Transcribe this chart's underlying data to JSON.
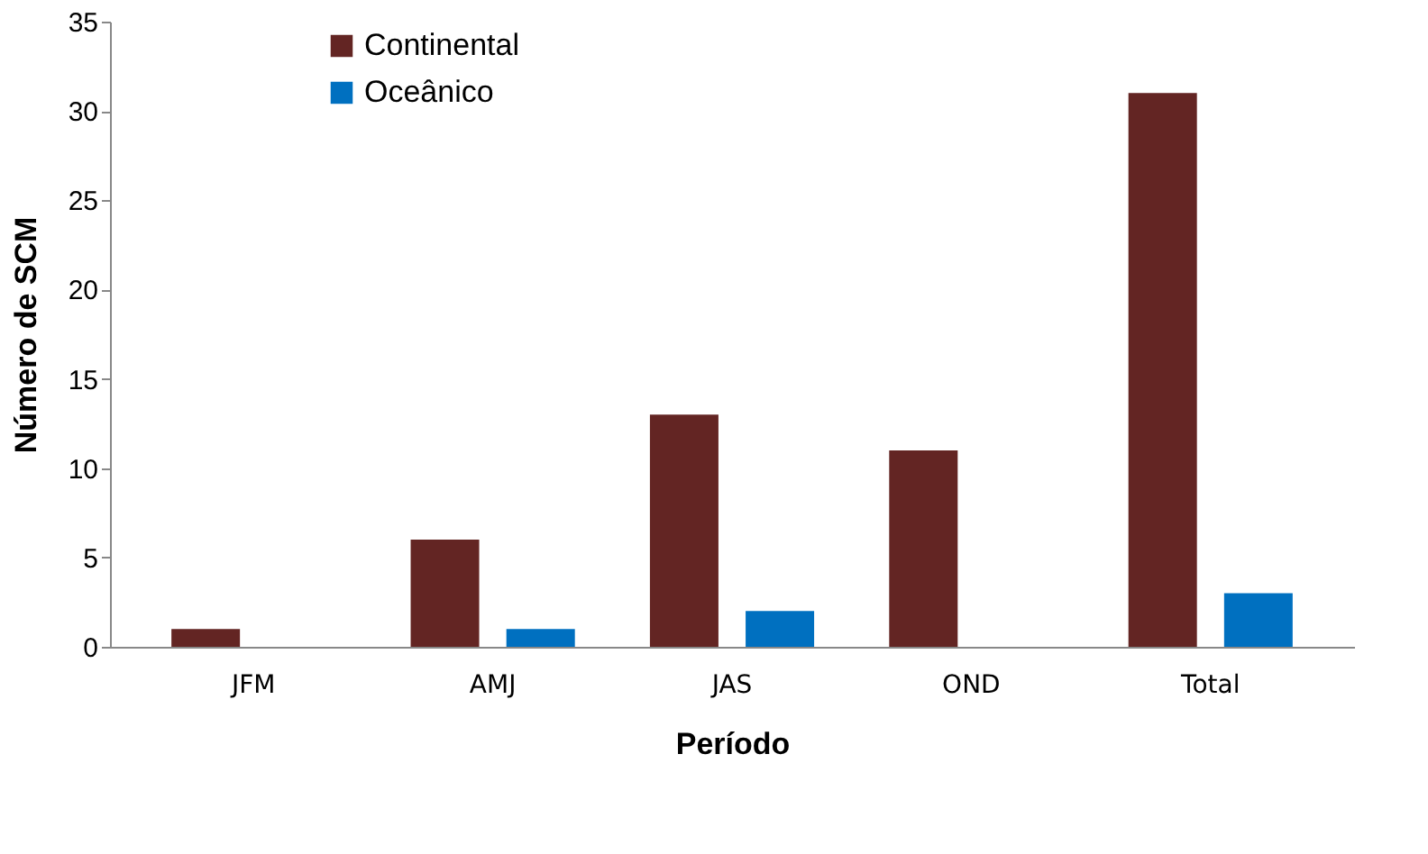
{
  "chart_data": {
    "type": "bar",
    "xlabel": "Período",
    "ylabel": "Número de SCM",
    "categories": [
      "JFM",
      "AMJ",
      "JAS",
      "OND",
      "Total"
    ],
    "series": [
      {
        "name": "Continental",
        "color": "#632523",
        "values": [
          1,
          6,
          13,
          11,
          31
        ]
      },
      {
        "name": "Oceânico",
        "color": "#0070c0",
        "values": [
          0,
          1,
          2,
          0,
          3
        ]
      }
    ],
    "ylim": [
      0,
      35
    ],
    "yticks": [
      0,
      5,
      10,
      15,
      20,
      25,
      30,
      35
    ],
    "grid": false,
    "legend": "top left"
  }
}
